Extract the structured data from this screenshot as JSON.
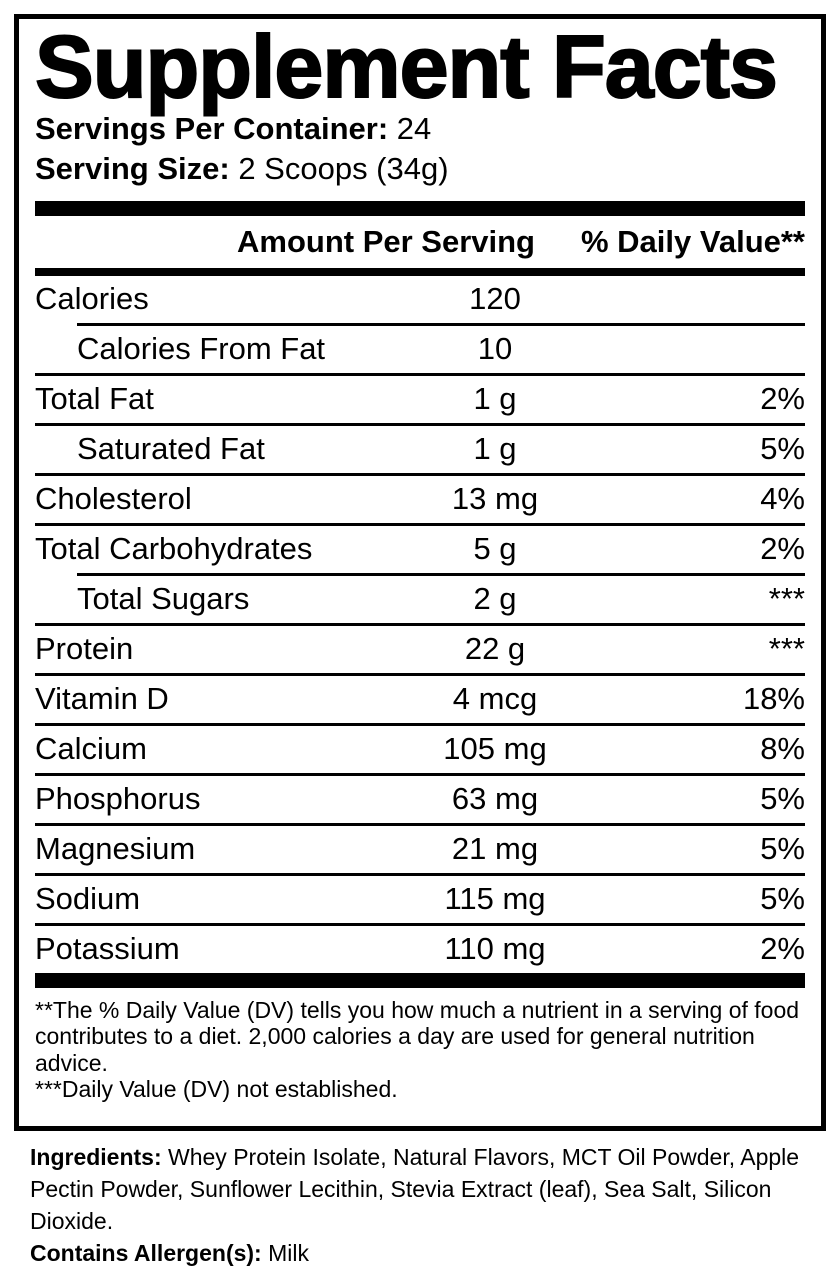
{
  "title": "Supplement Facts",
  "servings": {
    "label": "Servings Per Container:",
    "value": "24"
  },
  "serving_size": {
    "label": "Serving Size:",
    "value": "2 Scoops (34g)"
  },
  "table": {
    "amount_header": "Amount Per Serving",
    "dv_header": "% Daily Value**",
    "rows": [
      {
        "name": "Calories",
        "amount": "120",
        "dv": "",
        "indent": false,
        "divider": "none"
      },
      {
        "name": "Calories From Fat",
        "amount": "10",
        "dv": "",
        "indent": true,
        "divider": "indent"
      },
      {
        "name": "Total Fat",
        "amount": "1 g",
        "dv": "2%",
        "indent": false,
        "divider": "full"
      },
      {
        "name": "Saturated Fat",
        "amount": "1 g",
        "dv": "5%",
        "indent": true,
        "divider": "full"
      },
      {
        "name": "Cholesterol",
        "amount": "13 mg",
        "dv": "4%",
        "indent": false,
        "divider": "full"
      },
      {
        "name": "Total Carbohydrates",
        "amount": "5 g",
        "dv": "2%",
        "indent": false,
        "divider": "full"
      },
      {
        "name": "Total Sugars",
        "amount": "2 g",
        "dv": "***",
        "indent": true,
        "divider": "indent"
      },
      {
        "name": "Protein",
        "amount": "22 g",
        "dv": "***",
        "indent": false,
        "divider": "full"
      },
      {
        "name": "Vitamin D",
        "amount": "4 mcg",
        "dv": "18%",
        "indent": false,
        "divider": "full"
      },
      {
        "name": "Calcium",
        "amount": "105 mg",
        "dv": "8%",
        "indent": false,
        "divider": "full"
      },
      {
        "name": "Phosphorus",
        "amount": "63 mg",
        "dv": "5%",
        "indent": false,
        "divider": "full"
      },
      {
        "name": "Magnesium",
        "amount": "21 mg",
        "dv": "5%",
        "indent": false,
        "divider": "full"
      },
      {
        "name": "Sodium",
        "amount": "115 mg",
        "dv": "5%",
        "indent": false,
        "divider": "full"
      },
      {
        "name": "Potassium",
        "amount": "110 mg",
        "dv": "2%",
        "indent": false,
        "divider": "full"
      }
    ]
  },
  "footnotes": [
    "**The % Daily Value (DV) tells you how much a nutrient in a serving of food contributes to a diet. 2,000 calories a day are used for general nutrition advice.",
    "***Daily Value (DV) not established."
  ],
  "ingredients": {
    "label": "Ingredients:",
    "text": "Whey Protein Isolate, Natural Flavors, MCT Oil Powder, Apple Pectin Powder, Sunflower Lecithin, Stevia Extract (leaf), Sea Salt, Silicon Dioxide."
  },
  "allergen": {
    "label": "Contains Allergen(s):",
    "value": "Milk"
  },
  "colors": {
    "text": "#000000",
    "background": "#ffffff"
  }
}
